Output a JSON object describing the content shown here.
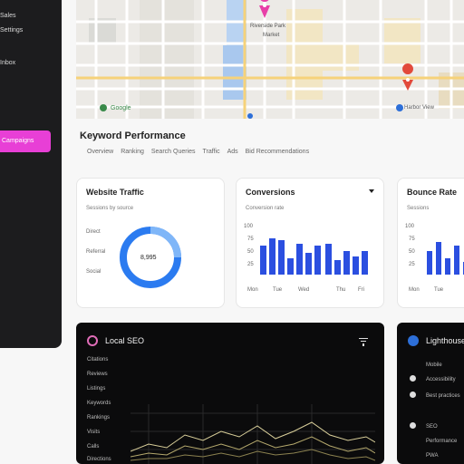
{
  "sidebar": {
    "items": [
      "Sales",
      "Settings",
      "Inbox"
    ],
    "active_label": "Campaigns"
  },
  "map": {
    "labels": [
      "Riverside Park",
      "Market",
      "Harbor View"
    ],
    "brand": "Google"
  },
  "keyperf": {
    "title": "Keyword Performance",
    "tabs": [
      "Overview",
      "Ranking",
      "Search Queries",
      "Traffic",
      "Ads",
      "Bid Recommendations"
    ]
  },
  "cards": {
    "card1": {
      "title": "Website Traffic",
      "sub": "Sessions by source",
      "labels": [
        "Direct",
        "Referral",
        "Social"
      ],
      "donut_value": "8,995"
    },
    "card2": {
      "title": "Conversions",
      "sub": "Conversion rate",
      "y_labels": [
        "100",
        "75",
        "50",
        "25"
      ],
      "x_labels": [
        "Mon",
        "Tue",
        "Wed",
        "Thu",
        "Fri"
      ]
    },
    "card3": {
      "title": "Bounce Rate",
      "sub": "Sessions",
      "y_labels": [
        "100",
        "75",
        "50",
        "25"
      ],
      "x_labels": [
        "Mon",
        "Tue"
      ]
    }
  },
  "dark1": {
    "title": "Local SEO",
    "rows": [
      "Citations",
      "Reviews",
      "Listings",
      "Keywords",
      "Rankings",
      "Visits",
      "Calls",
      "Directions"
    ]
  },
  "dark2": {
    "title": "Lighthouse",
    "items": [
      "Mobile",
      "Accessibility",
      "Best practices",
      "SEO",
      "Performance",
      "PWA"
    ]
  },
  "colors": {
    "sidebar_active": "#e83fd6",
    "bars": "#2b4fe0",
    "donut": "#2b7bf0",
    "dark_bg": "#0b0b0c"
  }
}
